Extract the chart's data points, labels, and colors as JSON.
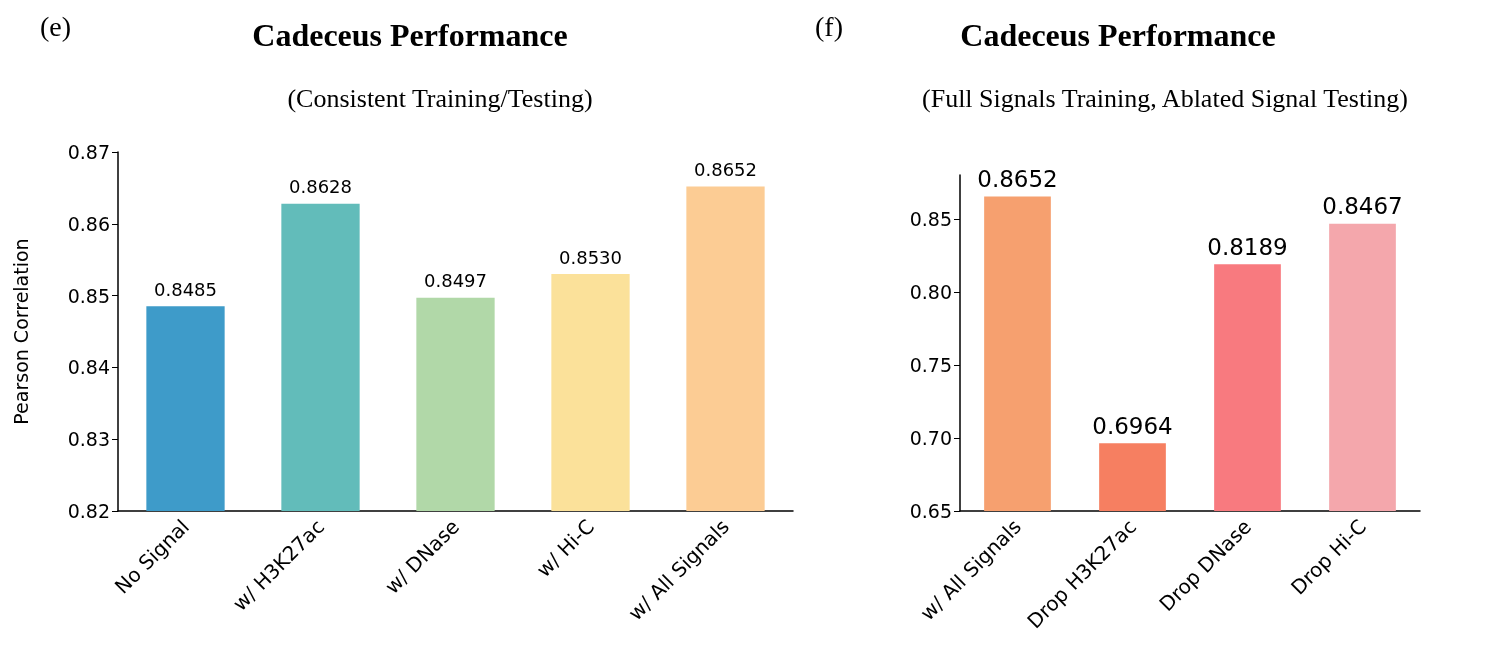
{
  "chart_data": [
    {
      "type": "bar",
      "title": "Cadeceus Performance",
      "subtitle": "(Consistent Training/Testing)",
      "ylabel": "Pearson Correlation",
      "annotations": [
        "(e)"
      ],
      "categories": [
        "No Signal",
        "w/ H3K27ac",
        "w/ DNase",
        "w/ Hi-C",
        "w/ All Signals"
      ],
      "values": [
        0.8485,
        0.8628,
        0.8497,
        0.853,
        0.8652
      ],
      "value_labels": [
        "0.8485",
        "0.8628",
        "0.8497",
        "0.8530",
        "0.8652"
      ],
      "colors": [
        "#3e9bc9",
        "#62bcba",
        "#b1d8a8",
        "#fbe19a",
        "#fccc94"
      ],
      "ylim": [
        0.82,
        0.87
      ],
      "yticks": [
        0.82,
        0.83,
        0.84,
        0.85,
        0.86,
        0.87
      ],
      "grid": false
    },
    {
      "type": "bar",
      "title": "Cadeceus Performance",
      "subtitle": "(Full Signals Training, Ablated Signal Testing)",
      "annotations": [
        "(f)"
      ],
      "categories": [
        "w/ All Signals",
        "Drop H3K27ac",
        "Drop DNase",
        "Drop Hi-C"
      ],
      "values": [
        0.8652,
        0.6964,
        0.8189,
        0.8467
      ],
      "value_labels": [
        "0.8652",
        "0.6964",
        "0.8189",
        "0.8467"
      ],
      "colors": [
        "#f6a06f",
        "#f67f61",
        "#f87a7f",
        "#f4a7ac"
      ],
      "ylim": [
        0.65,
        0.88
      ],
      "yticks": [
        {
          "value": 0.65,
          "label": "0.65"
        },
        {
          "value": 0.7,
          "label": "0.70"
        },
        {
          "value": 0.75,
          "label": "0.75"
        },
        {
          "value": 0.8,
          "label": "0.80"
        },
        {
          "value": 0.85,
          "label": "0.85"
        }
      ],
      "grid": false
    }
  ]
}
